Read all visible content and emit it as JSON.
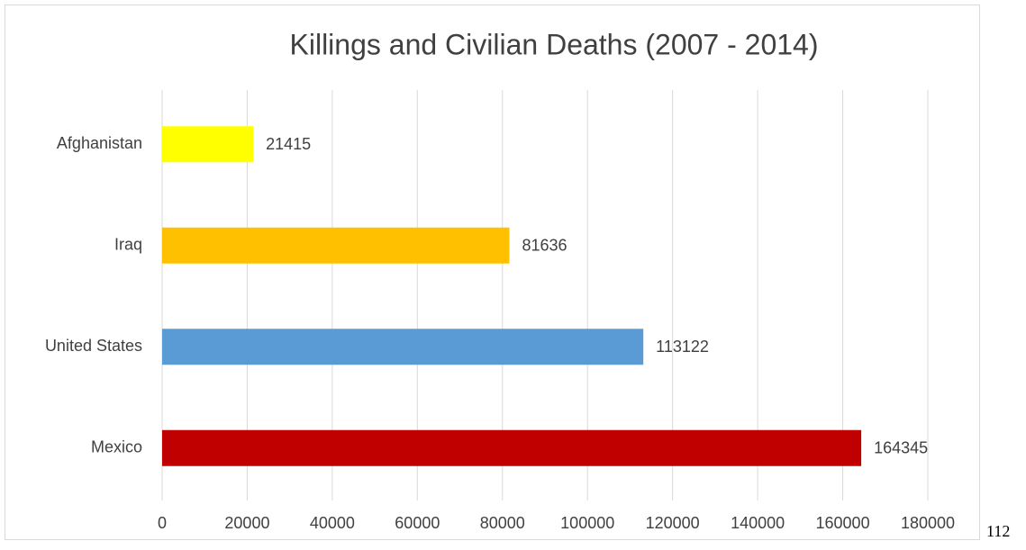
{
  "chart_data": {
    "type": "bar",
    "orientation": "horizontal",
    "title": "Killings and Civilian Deaths (2007 - 2014)",
    "categories": [
      "Afghanistan",
      "Iraq",
      "United States",
      "Mexico"
    ],
    "values": [
      21415,
      81636,
      113122,
      164345
    ],
    "colors": [
      "#ffff00",
      "#ffc000",
      "#5b9bd5",
      "#c00000"
    ],
    "xlim": [
      0,
      180000
    ],
    "xticks": [
      0,
      20000,
      40000,
      60000,
      80000,
      100000,
      120000,
      140000,
      160000,
      180000
    ],
    "grid": true
  },
  "page_number": "112"
}
